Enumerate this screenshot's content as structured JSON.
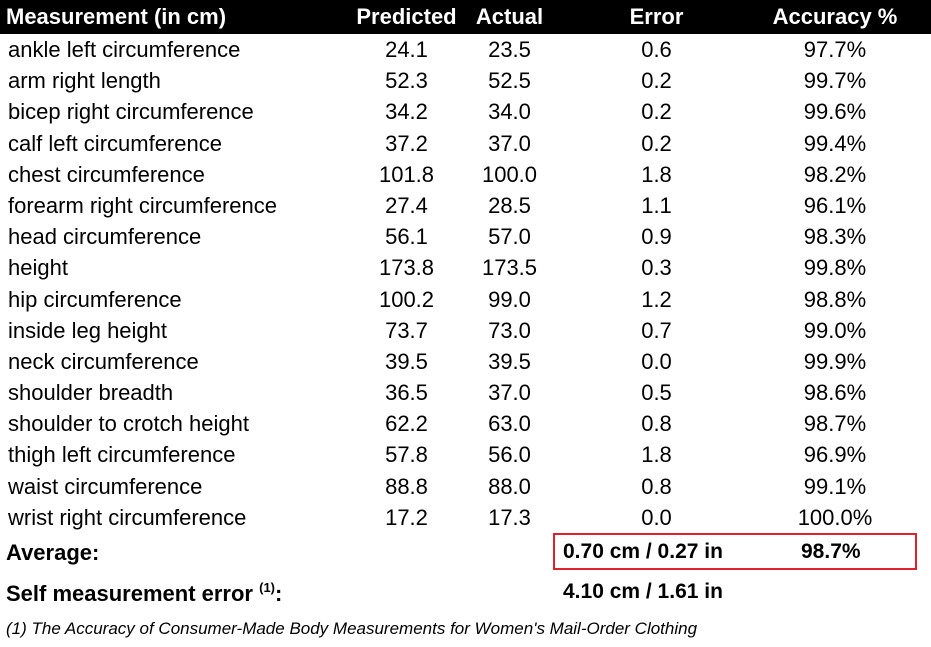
{
  "header": {
    "measurement": "Measurement (in cm)",
    "predicted": "Predicted",
    "actual": "Actual",
    "error": "Error",
    "accuracy": "Accuracy %"
  },
  "rows": [
    {
      "name": "ankle left circumference",
      "predicted": "24.1",
      "actual": "23.5",
      "error": "0.6",
      "accuracy": "97.7%"
    },
    {
      "name": "arm right length",
      "predicted": "52.3",
      "actual": "52.5",
      "error": "0.2",
      "accuracy": "99.7%"
    },
    {
      "name": "bicep right circumference",
      "predicted": "34.2",
      "actual": "34.0",
      "error": "0.2",
      "accuracy": "99.6%"
    },
    {
      "name": "calf left circumference",
      "predicted": "37.2",
      "actual": "37.0",
      "error": "0.2",
      "accuracy": "99.4%"
    },
    {
      "name": "chest circumference",
      "predicted": "101.8",
      "actual": "100.0",
      "error": "1.8",
      "accuracy": "98.2%"
    },
    {
      "name": "forearm right circumference",
      "predicted": "27.4",
      "actual": "28.5",
      "error": "1.1",
      "accuracy": "96.1%"
    },
    {
      "name": "head circumference",
      "predicted": "56.1",
      "actual": "57.0",
      "error": "0.9",
      "accuracy": "98.3%"
    },
    {
      "name": "height",
      "predicted": "173.8",
      "actual": "173.5",
      "error": "0.3",
      "accuracy": "99.8%"
    },
    {
      "name": "hip circumference",
      "predicted": "100.2",
      "actual": "99.0",
      "error": "1.2",
      "accuracy": "98.8%"
    },
    {
      "name": "inside leg height",
      "predicted": "73.7",
      "actual": "73.0",
      "error": "0.7",
      "accuracy": "99.0%"
    },
    {
      "name": "neck circumference",
      "predicted": "39.5",
      "actual": "39.5",
      "error": "0.0",
      "accuracy": "99.9%"
    },
    {
      "name": "shoulder breadth",
      "predicted": "36.5",
      "actual": "37.0",
      "error": "0.5",
      "accuracy": "98.6%"
    },
    {
      "name": "shoulder to crotch height",
      "predicted": "62.2",
      "actual": "63.0",
      "error": "0.8",
      "accuracy": "98.7%"
    },
    {
      "name": "thigh left circumference",
      "predicted": "57.8",
      "actual": "56.0",
      "error": "1.8",
      "accuracy": "96.9%"
    },
    {
      "name": "waist circumference",
      "predicted": "88.8",
      "actual": "88.0",
      "error": "0.8",
      "accuracy": "99.1%"
    },
    {
      "name": "wrist right circumference",
      "predicted": "17.2",
      "actual": "17.3",
      "error": "0.0",
      "accuracy": "100.0%"
    }
  ],
  "average": {
    "label": "Average:",
    "error": "0.70 cm / 0.27 in",
    "accuracy": "98.7%"
  },
  "self_measurement": {
    "label": "Self measurement error ",
    "ref": "(1)",
    "colon": ":",
    "value": "4.10 cm / 1.61 in"
  },
  "footnote": "(1) The Accuracy of Consumer-Made Body Measurements for Women's Mail-Order Clothing",
  "colors": {
    "header_bg": "#000000",
    "highlight_border": "#e0202a"
  }
}
